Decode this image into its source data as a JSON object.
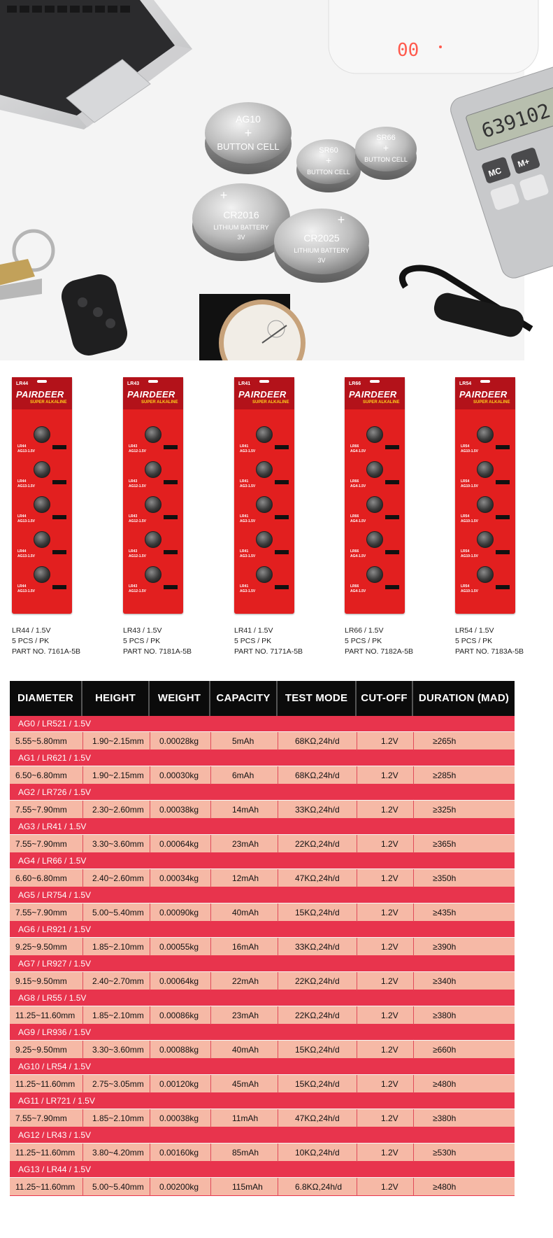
{
  "hero": {
    "scale_display": "00",
    "calculator_display": "639102",
    "calculator_keys": [
      "MC",
      "M+"
    ],
    "cells": [
      {
        "line1": "AG10",
        "line2": "+",
        "line3": "BUTTON CELL"
      },
      {
        "line1": "SR60",
        "line2": "+",
        "line3": "BUTTON CELL"
      },
      {
        "line1": "SR66",
        "line2": "+",
        "line3": "BUTTON CELL"
      },
      {
        "line1": "+",
        "line2": "CR2016",
        "line3": "LITHIUM BATTERY",
        "line4": "3V"
      },
      {
        "line1": "+",
        "line2": "CR2025",
        "line3": "LITHIUM BATTERY",
        "line4": "3V"
      }
    ]
  },
  "packs": [
    {
      "model": "LR44",
      "brand": "PAIRDEER",
      "series": "SUPER ALKALINE",
      "sub": "AG13-1.5V",
      "spec": "LR44 / 1.5V",
      "qty": "5 PCS / PK",
      "part": "PART NO. 7161A-5B"
    },
    {
      "model": "LR43",
      "brand": "PAIRDEER",
      "series": "SUPER ALKALINE",
      "sub": "AG12-1.5V",
      "spec": "LR43 / 1.5V",
      "qty": "5 PCS / PK",
      "part": "PART NO. 7181A-5B"
    },
    {
      "model": "LR41",
      "brand": "PAIRDEER",
      "series": "SUPER ALKALINE",
      "sub": "AG3-1.5V",
      "spec": "LR41 / 1.5V",
      "qty": "5 PCS / PK",
      "part": "PART NO. 7171A-5B"
    },
    {
      "model": "LR66",
      "brand": "PAIRDEER",
      "series": "SUPER ALKALINE",
      "sub": "AG4-1.5V",
      "spec": "LR66 / 1.5V",
      "qty": "5 PCS / PK",
      "part": "PART NO. 7182A-5B"
    },
    {
      "model": "LR54",
      "brand": "PAIRDEER",
      "series": "SUPER ALKALINE",
      "sub": "AG10-1.5V",
      "spec": "LR54 / 1.5V",
      "qty": "5 PCS / PK",
      "part": "PART NO. 7183A-5B"
    }
  ],
  "table": {
    "headers": [
      "DIAMETER",
      "HEIGHT",
      "WEIGHT",
      "CAPACITY",
      "TEST MODE",
      "CUT-OFF",
      "DURATION (MAD)"
    ],
    "rows": [
      {
        "group": "AG0 / LR521 / 1.5V",
        "cells": [
          "5.55~5.80mm",
          "1.90~2.15mm",
          "0.00028kg",
          "5mAh",
          "68KΩ,24h/d",
          "1.2V",
          "≥265h"
        ]
      },
      {
        "group": "AG1 / LR621 / 1.5V",
        "cells": [
          "6.50~6.80mm",
          "1.90~2.15mm",
          "0.00030kg",
          "6mAh",
          "68KΩ,24h/d",
          "1.2V",
          "≥285h"
        ]
      },
      {
        "group": "AG2 / LR726 / 1.5V",
        "cells": [
          "7.55~7.90mm",
          "2.30~2.60mm",
          "0.00038kg",
          "14mAh",
          "33KΩ,24h/d",
          "1.2V",
          "≥325h"
        ]
      },
      {
        "group": "AG3 / LR41 / 1.5V",
        "cells": [
          "7.55~7.90mm",
          "3.30~3.60mm",
          "0.00064kg",
          "23mAh",
          "22KΩ,24h/d",
          "1.2V",
          "≥365h"
        ]
      },
      {
        "group": "AG4 / LR66 / 1.5V",
        "cells": [
          "6.60~6.80mm",
          "2.40~2.60mm",
          "0.00034kg",
          "12mAh",
          "47KΩ,24h/d",
          "1.2V",
          "≥350h"
        ]
      },
      {
        "group": "AG5 / LR754 / 1.5V",
        "cells": [
          "7.55~7.90mm",
          "5.00~5.40mm",
          "0.00090kg",
          "40mAh",
          "15KΩ,24h/d",
          "1.2V",
          "≥435h"
        ]
      },
      {
        "group": "AG6 / LR921 / 1.5V",
        "cells": [
          "9.25~9.50mm",
          "1.85~2.10mm",
          "0.00055kg",
          "16mAh",
          "33KΩ,24h/d",
          "1.2V",
          "≥390h"
        ]
      },
      {
        "group": "AG7 / LR927 / 1.5V",
        "cells": [
          "9.15~9.50mm",
          "2.40~2.70mm",
          "0.00064kg",
          "22mAh",
          "22KΩ,24h/d",
          "1.2V",
          "≥340h"
        ]
      },
      {
        "group": "AG8 / LR55 / 1.5V",
        "cells": [
          "11.25~11.60mm",
          "1.85~2.10mm",
          "0.00086kg",
          "23mAh",
          "22KΩ,24h/d",
          "1.2V",
          "≥380h"
        ]
      },
      {
        "group": "AG9 / LR936 / 1.5V",
        "cells": [
          "9.25~9.50mm",
          "3.30~3.60mm",
          "0.00088kg",
          "40mAh",
          "15KΩ,24h/d",
          "1.2V",
          "≥660h"
        ]
      },
      {
        "group": "AG10 / LR54 / 1.5V",
        "cells": [
          "11.25~11.60mm",
          "2.75~3.05mm",
          "0.00120kg",
          "45mAh",
          "15KΩ,24h/d",
          "1.2V",
          "≥480h"
        ]
      },
      {
        "group": "AG11 / LR721 / 1.5V",
        "cells": [
          "7.55~7.90mm",
          "1.85~2.10mm",
          "0.00038kg",
          "11mAh",
          "47KΩ,24h/d",
          "1.2V",
          "≥380h"
        ]
      },
      {
        "group": "AG12 / LR43 / 1.5V",
        "cells": [
          "11.25~11.60mm",
          "3.80~4.20mm",
          "0.00160kg",
          "85mAh",
          "10KΩ,24h/d",
          "1.2V",
          "≥530h"
        ]
      },
      {
        "group": "AG13 / LR44 / 1.5V",
        "cells": [
          "11.25~11.60mm",
          "5.00~5.40mm",
          "0.00200kg",
          "115mAh",
          "6.8KΩ,24h/d",
          "1.2V",
          "≥480h"
        ]
      }
    ]
  }
}
